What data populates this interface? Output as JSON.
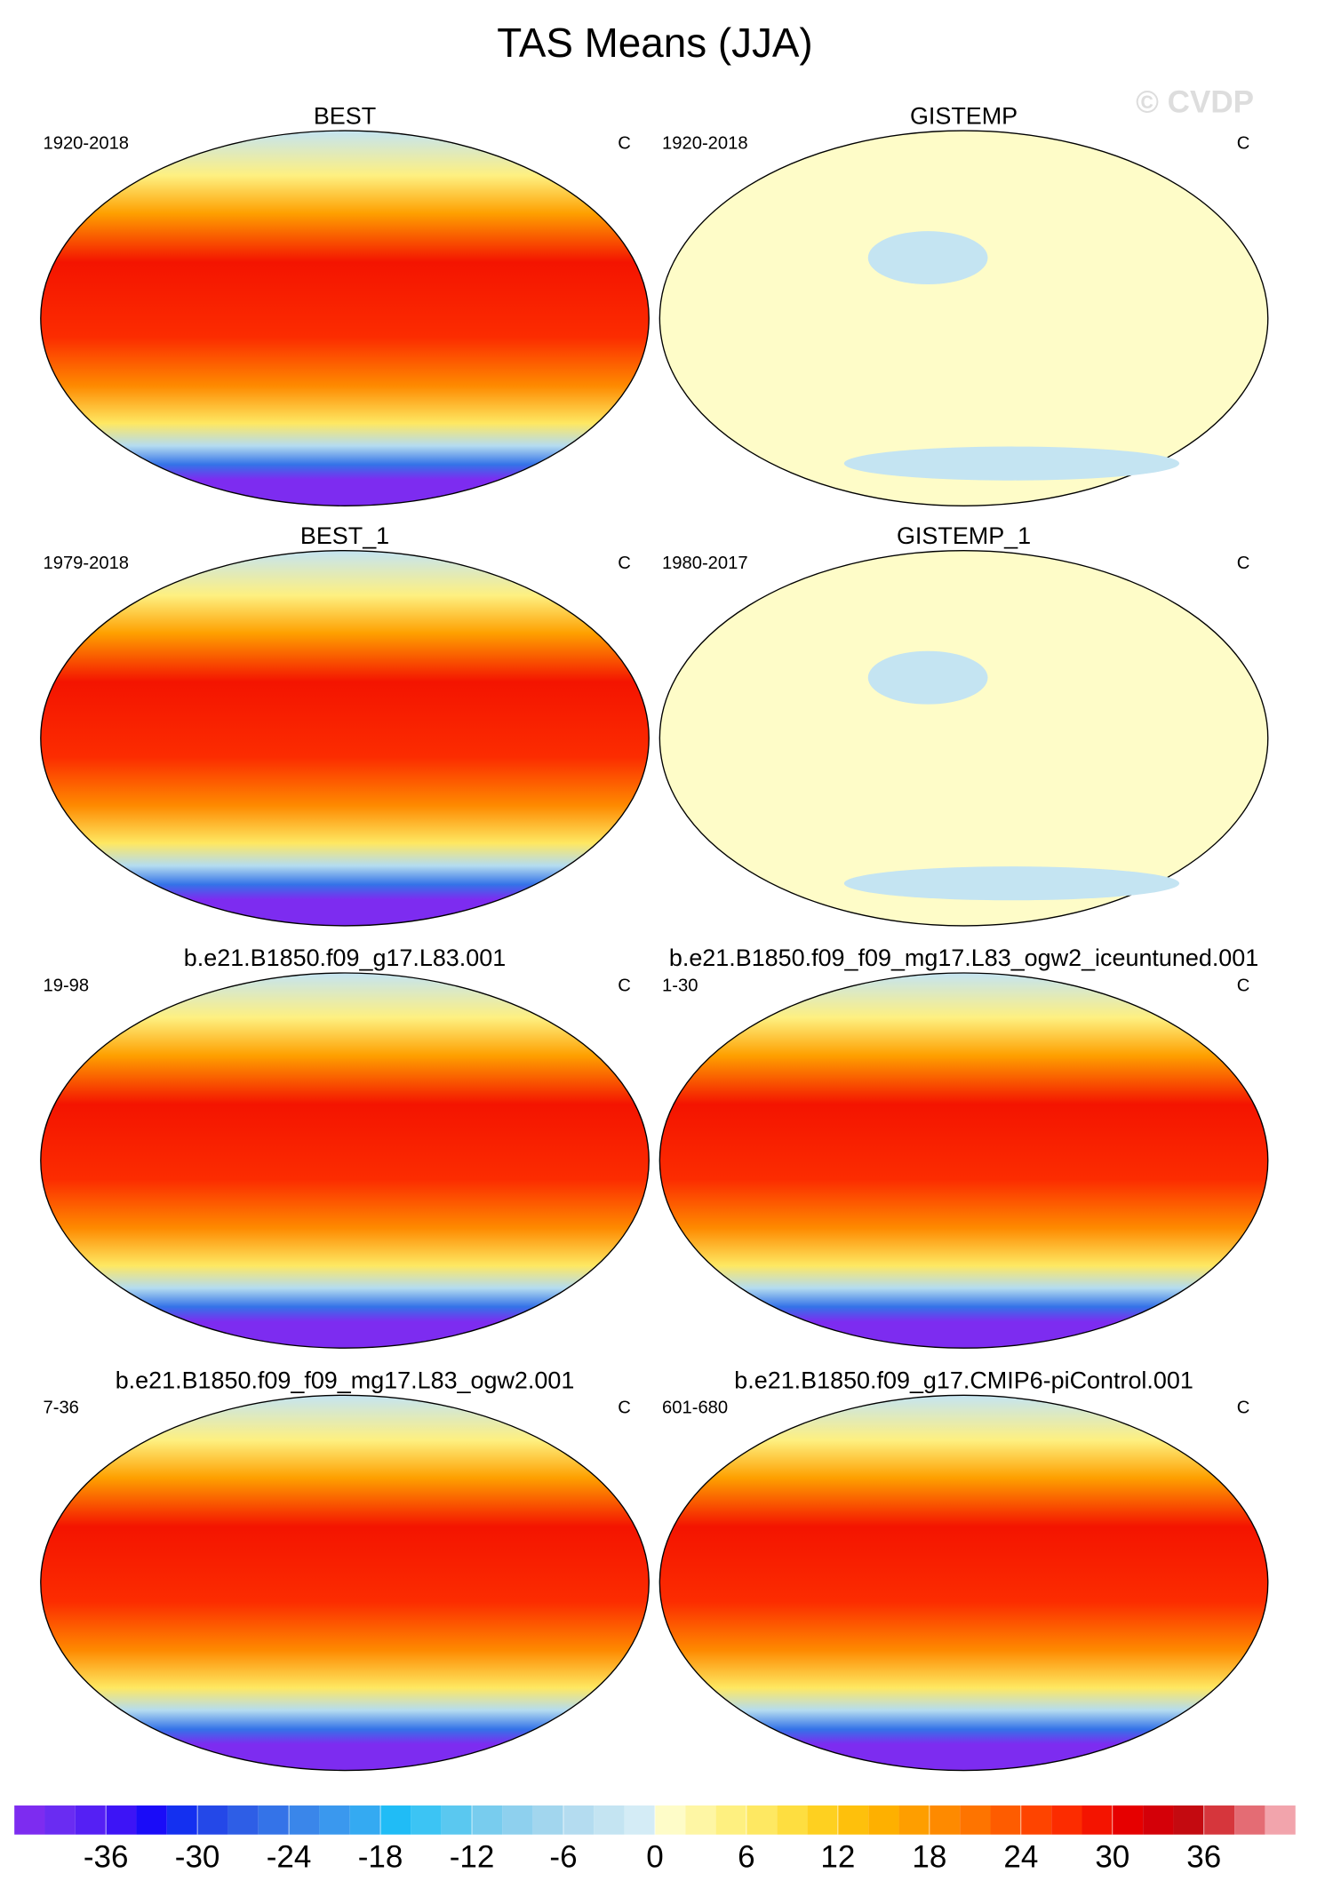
{
  "title": "TAS Means (JJA)",
  "watermark": "© CVDP",
  "panels": [
    {
      "title": "BEST",
      "period": "1920-2018",
      "units": "C",
      "style": "full"
    },
    {
      "title": "GISTEMP",
      "period": "1920-2018",
      "units": "C",
      "style": "anomaly"
    },
    {
      "title": "BEST_1",
      "period": "1979-2018",
      "units": "C",
      "style": "full"
    },
    {
      "title": "GISTEMP_1",
      "period": "1980-2017",
      "units": "C",
      "style": "anomaly"
    },
    {
      "title": "b.e21.B1850.f09_g17.L83.001",
      "period": "19-98",
      "units": "C",
      "style": "full"
    },
    {
      "title": "b.e21.B1850.f09_f09_mg17.L83_ogw2_iceuntuned.001",
      "period": "1-30",
      "units": "C",
      "style": "full"
    },
    {
      "title": "b.e21.B1850.f09_f09_mg17.L83_ogw2.001",
      "period": "7-36",
      "units": "C",
      "style": "full"
    },
    {
      "title": "b.e21.B1850.f09_g17.CMIP6-piControl.001",
      "period": "601-680",
      "units": "C",
      "style": "full"
    }
  ],
  "colorbar": {
    "xlim": [
      -42,
      42
    ],
    "xticks": [
      -36,
      -30,
      -24,
      -18,
      -12,
      -6,
      0,
      6,
      12,
      18,
      24,
      30,
      36
    ],
    "colors": [
      "#7d2cf0",
      "#6a2cf2",
      "#5520f4",
      "#3d14f6",
      "#1a0cf8",
      "#1430f0",
      "#2448e8",
      "#2e5ee6",
      "#3473e8",
      "#3a86ea",
      "#3a98ee",
      "#34aaf2",
      "#20bcf6",
      "#3cc4f4",
      "#5ac8f0",
      "#78ccee",
      "#8ed0ee",
      "#a2d6ee",
      "#b4dcf0",
      "#c4e4f2",
      "#d4ecf6",
      "#fefcc8",
      "#fef6a4",
      "#fef080",
      "#fee862",
      "#fede40",
      "#fed020",
      "#fec00c",
      "#feb000",
      "#fe9e00",
      "#fe8a00",
      "#fe7400",
      "#fe5c00",
      "#fe4400",
      "#fc2c00",
      "#f41400",
      "#e60000",
      "#d40008",
      "#c40a10",
      "#d6363c",
      "#e46c74",
      "#f2a4ac"
    ]
  }
}
